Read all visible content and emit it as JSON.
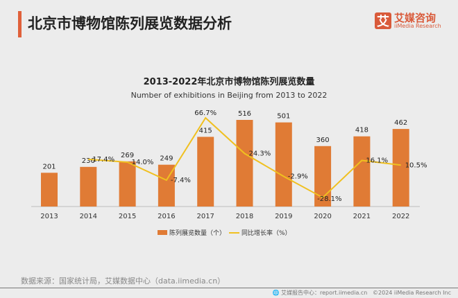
{
  "header": {
    "title": "北京市博物馆陈列展览数据分析",
    "logo_cn": "艾媒咨询",
    "logo_en": "iiMedia Research",
    "logo_mark": "艾"
  },
  "footer": {
    "source": "数据来源：国家统计局，艾媒数据中心（data.iimedia.cn）",
    "report": "艾媒报告中心：report.iimedia.cn",
    "copyright": "©2024  iiMedia Research  Inc"
  },
  "colors": {
    "bar": "#e07b35",
    "line": "#f0c020",
    "accent": "#e0603a"
  },
  "chart_data": {
    "type": "bar",
    "title": "2013-2022年北京市博物馆陈列展览数量",
    "subtitle": "Number of exhibitions in Beijing from 2013 to 2022",
    "categories": [
      "2013",
      "2014",
      "2015",
      "2016",
      "2017",
      "2018",
      "2019",
      "2020",
      "2021",
      "2022"
    ],
    "series": [
      {
        "name": "陈列展览数量（个）",
        "type": "bar",
        "values": [
          201,
          236,
          269,
          249,
          415,
          516,
          501,
          360,
          418,
          462
        ]
      },
      {
        "name": "同比增长率（%）",
        "type": "line",
        "values": [
          null,
          17.4,
          14.0,
          -7.4,
          66.7,
          24.3,
          -2.9,
          -28.1,
          16.1,
          10.5
        ],
        "labels": [
          "",
          "17.4%",
          "14.0%",
          "-7.4%",
          "66.7%",
          "24.3%",
          "-2.9%",
          "-28.1%",
          "16.1%",
          "10.5%"
        ]
      }
    ],
    "legend": "bottom",
    "grid": false
  }
}
